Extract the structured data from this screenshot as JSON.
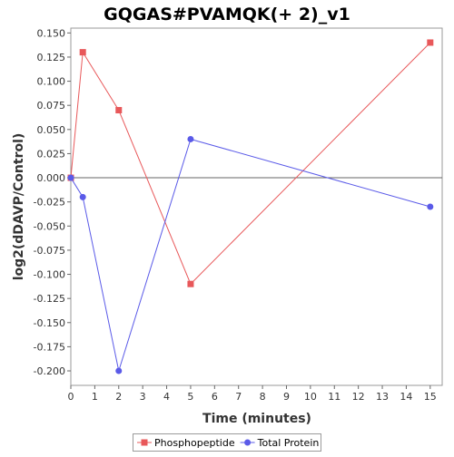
{
  "chart_data": {
    "type": "line",
    "title": "GQGAS#PVAMQK(+ 2)_v1",
    "xlabel": "Time (minutes)",
    "ylabel": "log2(dDAVP/Control)",
    "xlim": [
      0,
      15.5
    ],
    "ylim": [
      -0.215,
      0.155
    ],
    "xticks": [
      "0",
      "1",
      "2",
      "3",
      "4",
      "5",
      "6",
      "7",
      "8",
      "9",
      "10",
      "11",
      "12",
      "13",
      "14",
      "15"
    ],
    "yticks": [
      "0.150",
      "0.125",
      "0.100",
      "0.075",
      "0.050",
      "0.025",
      "0.000",
      "-0.025",
      "-0.050",
      "-0.075",
      "-0.100",
      "-0.125",
      "-0.150",
      "-0.175",
      "-0.200"
    ],
    "zero_line": 0,
    "grid": false,
    "legend_position": "bottom",
    "series": [
      {
        "name": "Phosphopeptide",
        "color": "#e8585a",
        "marker": "square",
        "x": [
          0,
          0.5,
          2,
          5,
          15
        ],
        "y": [
          0.0,
          0.13,
          0.07,
          -0.11,
          0.14
        ]
      },
      {
        "name": "Total Protein",
        "color": "#5a5ae8",
        "marker": "circle",
        "x": [
          0,
          0.5,
          2,
          5,
          15
        ],
        "y": [
          0.0,
          -0.02,
          -0.2,
          0.04,
          -0.03
        ]
      }
    ]
  }
}
